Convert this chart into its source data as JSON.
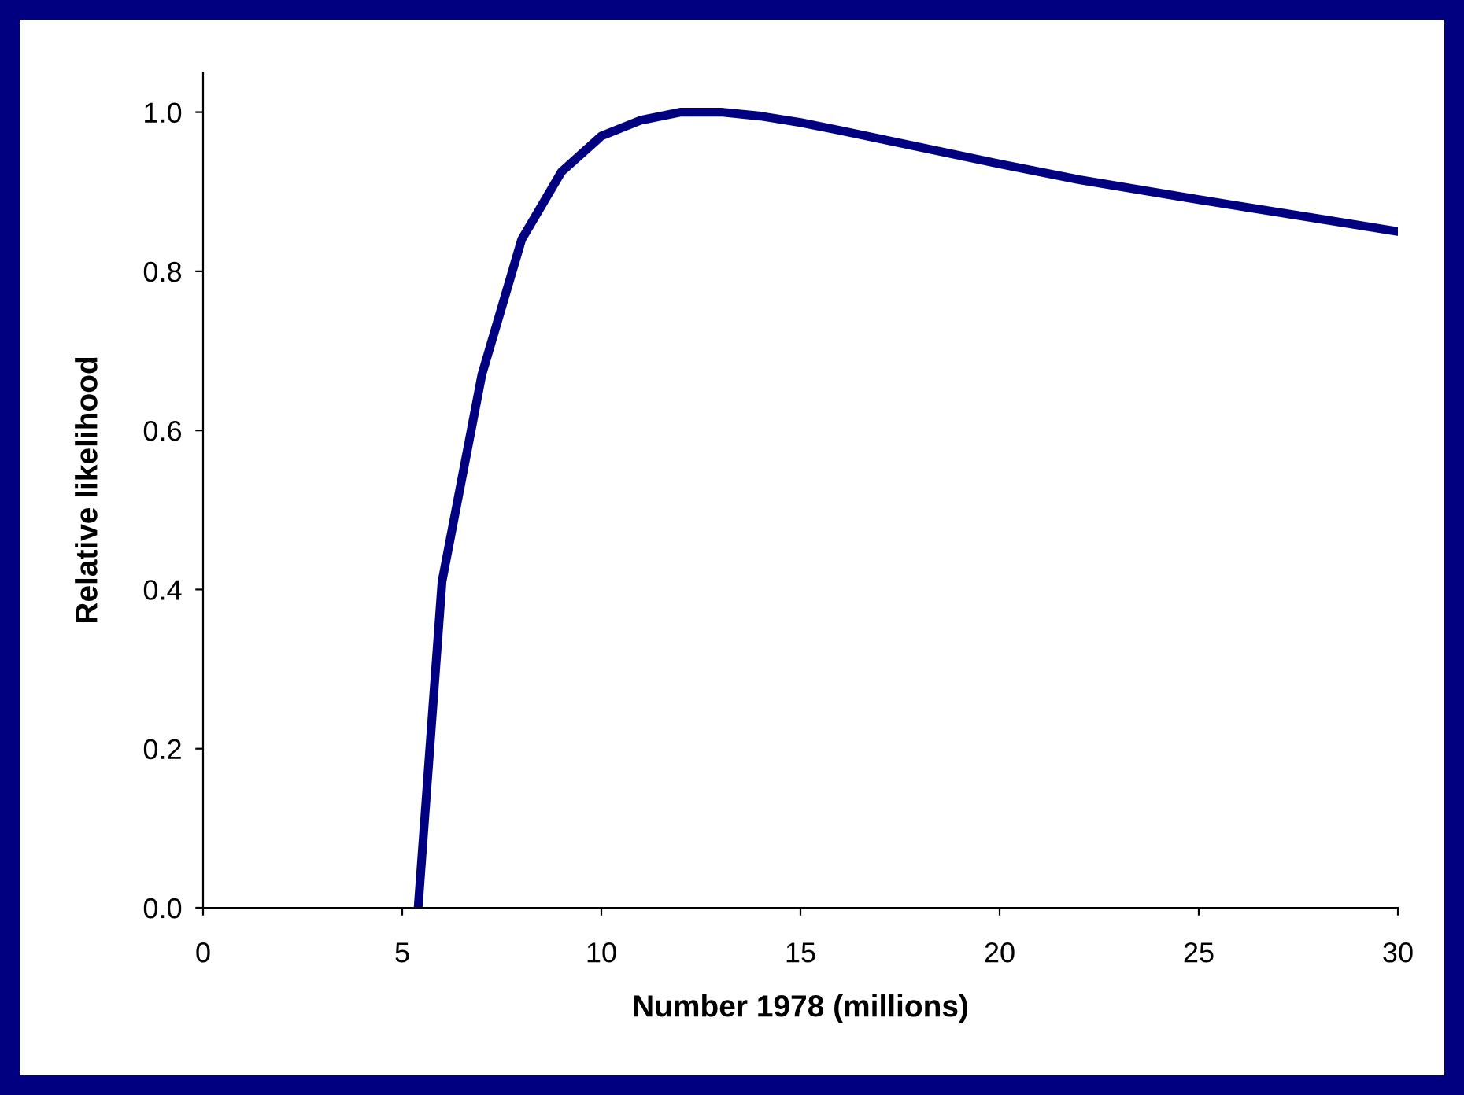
{
  "chart_data": {
    "type": "line",
    "xlabel": "Number 1978 (millions)",
    "ylabel": "Relative likelihood",
    "series": [
      {
        "color": "#000080",
        "x": [
          5.4,
          6,
          7,
          8,
          9,
          10,
          11,
          12,
          13,
          14,
          15,
          16,
          18,
          20,
          22,
          25,
          28,
          30
        ],
        "values": [
          0.0,
          0.41,
          0.67,
          0.84,
          0.925,
          0.97,
          0.99,
          1.0,
          1.0,
          0.995,
          0.987,
          0.977,
          0.956,
          0.935,
          0.915,
          0.89,
          0.866,
          0.85
        ]
      }
    ],
    "xlim": [
      0,
      30
    ],
    "xticks": [
      0,
      5,
      10,
      15,
      20,
      25,
      30
    ],
    "ylim": [
      0,
      1.05
    ],
    "yticks": [
      {
        "value": 0,
        "label": "0.0"
      },
      {
        "value": 0.2,
        "label": "0.2"
      },
      {
        "value": 0.4,
        "label": "0.4"
      },
      {
        "value": 0.6,
        "label": "0.6"
      },
      {
        "value": 0.8,
        "label": "0.8"
      },
      {
        "value": 1.0,
        "label": "1.0"
      }
    ],
    "grid": false,
    "legend": false,
    "marker": "none",
    "line_style": "solid"
  }
}
